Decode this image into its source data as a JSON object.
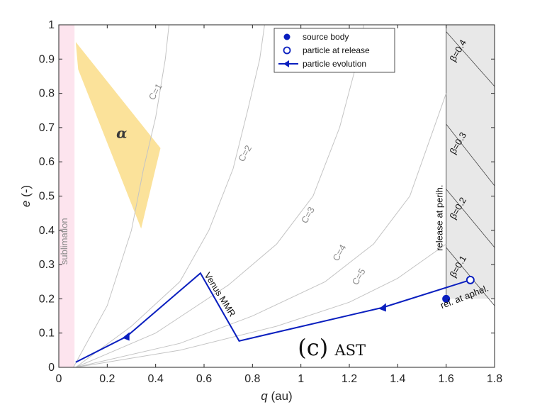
{
  "chart_data": {
    "type": "line",
    "title": "",
    "xlabel": {
      "var": "q",
      "unit": " (au)"
    },
    "ylabel": {
      "var": "e",
      "unit": " (-)"
    },
    "xlim": [
      0,
      1.8
    ],
    "ylim": [
      0,
      1
    ],
    "xticks": [
      "0",
      "0.2",
      "0.4",
      "0.6",
      "0.8",
      "1",
      "1.2",
      "1.4",
      "1.6",
      "1.8"
    ],
    "yticks": [
      "0",
      "0.1",
      "0.2",
      "0.3",
      "0.4",
      "0.5",
      "0.6",
      "0.7",
      "0.8",
      "0.9",
      "1"
    ],
    "colors": {
      "evolution": "#0a1fbf",
      "curves": "#c4c4c4",
      "sublimation": "#fde4ee",
      "alpha_region": "#fbe29a",
      "release_region": "#e8e8e8"
    },
    "sublimation": {
      "label": "sublimation",
      "x_range": [
        0,
        0.065
      ]
    },
    "alpha_region": {
      "label": "α",
      "polygon": [
        [
          0.07,
          0.95
        ],
        [
          0.42,
          0.64
        ],
        [
          0.34,
          0.405
        ],
        [
          0.08,
          0.87
        ]
      ]
    },
    "c_curves": [
      {
        "label": "C=1",
        "points": [
          [
            0.06,
            0
          ],
          [
            0.2,
            0.18
          ],
          [
            0.3,
            0.4
          ],
          [
            0.35,
            0.58
          ],
          [
            0.4,
            0.73
          ],
          [
            0.44,
            0.9
          ],
          [
            0.455,
            1.0
          ]
        ]
      },
      {
        "label": "C=2",
        "points": [
          [
            0.07,
            0
          ],
          [
            0.3,
            0.12
          ],
          [
            0.5,
            0.25
          ],
          [
            0.62,
            0.4
          ],
          [
            0.72,
            0.58
          ],
          [
            0.78,
            0.75
          ],
          [
            0.83,
            0.9
          ],
          [
            0.85,
            1.0
          ]
        ]
      },
      {
        "label": "C=3",
        "points": [
          [
            0.07,
            0
          ],
          [
            0.4,
            0.1
          ],
          [
            0.7,
            0.24
          ],
          [
            0.9,
            0.36
          ],
          [
            1.05,
            0.5
          ],
          [
            1.16,
            0.7
          ],
          [
            1.22,
            0.86
          ],
          [
            1.26,
            1.0
          ]
        ]
      },
      {
        "label": "C=4",
        "points": [
          [
            0.07,
            0
          ],
          [
            0.5,
            0.07
          ],
          [
            0.8,
            0.15
          ],
          [
            1.1,
            0.25
          ],
          [
            1.3,
            0.36
          ],
          [
            1.45,
            0.5
          ],
          [
            1.55,
            0.7
          ],
          [
            1.6,
            0.8
          ]
        ]
      },
      {
        "label": "C=5",
        "points": [
          [
            0.07,
            0
          ],
          [
            0.5,
            0.05
          ],
          [
            0.9,
            0.12
          ],
          [
            1.2,
            0.19
          ],
          [
            1.4,
            0.26
          ],
          [
            1.6,
            0.36
          ]
        ]
      }
    ],
    "release_region": {
      "label": "release at perih.",
      "x_range": [
        1.6,
        1.8
      ],
      "y_max": 1
    },
    "beta_lines": [
      {
        "label": "β=0.1",
        "points": [
          [
            1.6,
            0.35
          ],
          [
            1.8,
            0.18
          ]
        ]
      },
      {
        "label": "β=0.2",
        "points": [
          [
            1.6,
            0.52
          ],
          [
            1.8,
            0.35
          ]
        ]
      },
      {
        "label": "β=0.3",
        "points": [
          [
            1.6,
            0.71
          ],
          [
            1.8,
            0.53
          ]
        ]
      },
      {
        "label": "β=0.4",
        "points": [
          [
            1.6,
            0.98
          ],
          [
            1.8,
            0.82
          ]
        ]
      }
    ],
    "aphelion_note": "rel. at aphel.",
    "series": [
      {
        "name": "particle evolution",
        "points": [
          [
            0.07,
            0.015
          ],
          [
            0.28,
            0.09
          ],
          [
            0.585,
            0.275
          ],
          [
            0.745,
            0.077
          ],
          [
            1.34,
            0.175
          ],
          [
            1.7,
            0.255
          ]
        ],
        "arrows_at": [
          [
            0.28,
            0.09
          ],
          [
            1.34,
            0.175
          ]
        ]
      }
    ],
    "source_body": {
      "name": "source body",
      "x": 1.6,
      "y": 0.2
    },
    "particle_release": {
      "name": "particle at release",
      "x": 1.7,
      "y": 0.255
    },
    "mmr_label": "Venus MMR",
    "panel_label": "(c)",
    "panel_sublabel": "AST",
    "legend": {
      "position": "top-center",
      "entries": [
        "source body",
        "particle at release",
        "particle evolution"
      ]
    }
  }
}
